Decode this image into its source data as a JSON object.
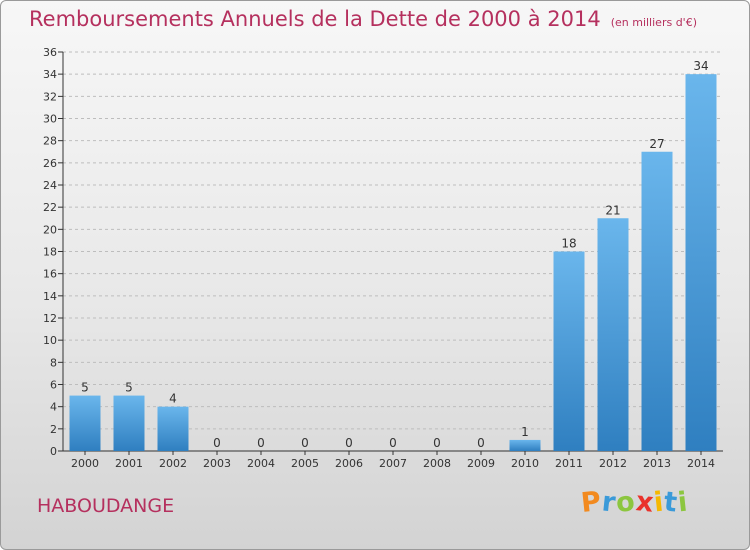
{
  "title": "Remboursements Annuels de la Dette de 2000 à 2014",
  "unit": "(en milliers d'€)",
  "commune": "HABOUDANGE",
  "brand": {
    "letters": [
      "P",
      "r",
      "o",
      "x",
      "i",
      "t",
      "i"
    ],
    "colors": [
      "#f28a1f",
      "#3a9ad9",
      "#8cc63f",
      "#e9322b",
      "#f5b800",
      "#3a9ad9",
      "#8cc63f"
    ]
  },
  "colors": {
    "title": "#b5305e",
    "bar_light": "#6ab6ec",
    "bar_dark": "#2f7fc0",
    "axis": "#333333",
    "grid": "#bdbdbd"
  },
  "chart_data": {
    "type": "bar",
    "title": "Remboursements Annuels de la Dette de 2000 à 2014",
    "xlabel": "",
    "ylabel": "",
    "categories": [
      "2000",
      "2001",
      "2002",
      "2003",
      "2004",
      "2005",
      "2006",
      "2007",
      "2008",
      "2009",
      "2010",
      "2011",
      "2012",
      "2013",
      "2014"
    ],
    "values": [
      5,
      5,
      4,
      0,
      0,
      0,
      0,
      0,
      0,
      0,
      1,
      18,
      21,
      27,
      34
    ],
    "ylim": [
      0,
      36
    ],
    "yticks": [
      0,
      2,
      4,
      6,
      8,
      10,
      12,
      14,
      16,
      18,
      20,
      22,
      24,
      26,
      28,
      30,
      32,
      34,
      36
    ],
    "grid": true,
    "legend": "none"
  }
}
